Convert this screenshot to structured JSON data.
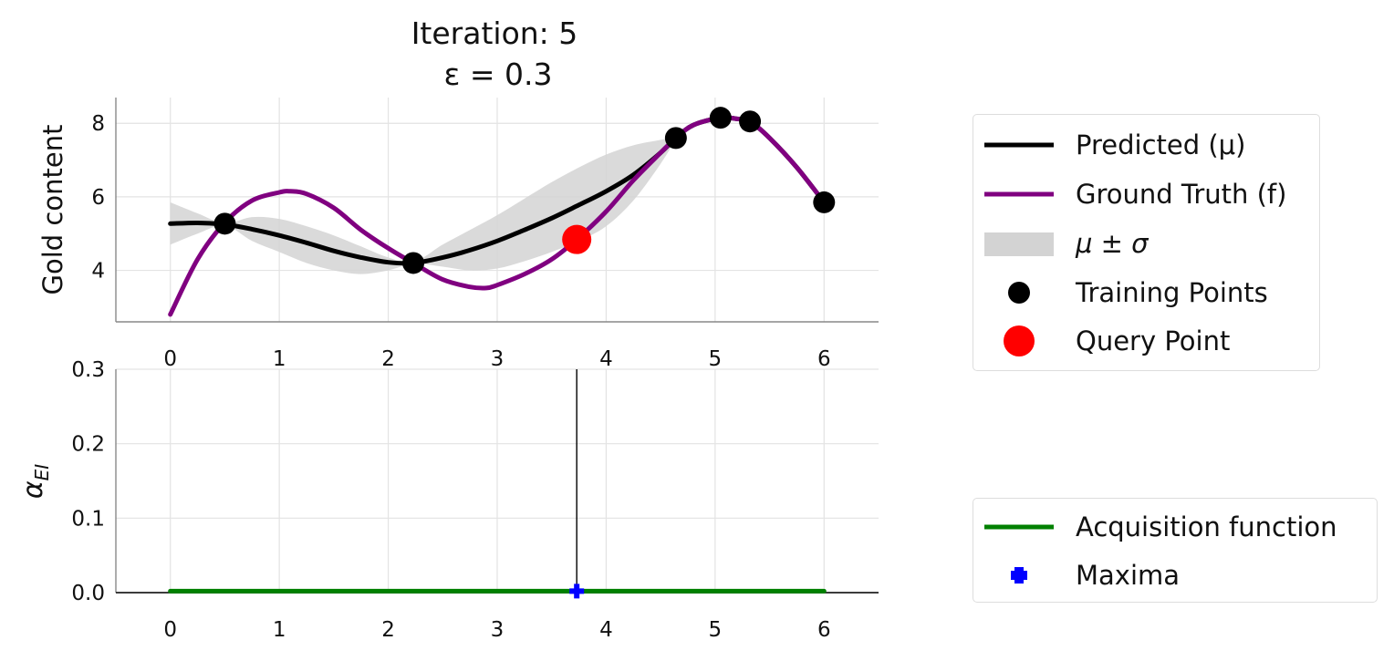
{
  "chart_data": [
    {
      "type": "line",
      "title": "Iteration: 5",
      "subtitle": "ε = 0.3",
      "ylabel": "Gold content",
      "xlabel": "",
      "xlim": [
        -0.5,
        6.5
      ],
      "ylim": [
        2.6,
        8.7
      ],
      "xticks": [
        0,
        1,
        2,
        3,
        4,
        5,
        6
      ],
      "yticks": [
        4,
        6,
        8
      ],
      "grid": true,
      "series": [
        {
          "name": "Predicted (μ)",
          "kind": "line",
          "color": "#000000",
          "x": [
            0,
            0.25,
            0.5,
            0.75,
            1.0,
            1.25,
            1.5,
            1.75,
            2.0,
            2.23,
            2.5,
            2.75,
            3.0,
            3.25,
            3.5,
            3.75,
            4.0,
            4.25,
            4.5,
            4.64,
            4.8,
            5.05,
            5.2,
            5.32,
            5.5,
            5.75,
            6.0
          ],
          "y": [
            5.27,
            5.29,
            5.25,
            5.12,
            4.95,
            4.75,
            4.53,
            4.35,
            4.22,
            4.2,
            4.35,
            4.55,
            4.8,
            5.1,
            5.42,
            5.78,
            6.15,
            6.6,
            7.2,
            7.6,
            7.95,
            8.15,
            8.12,
            8.05,
            7.6,
            6.8,
            5.85
          ]
        },
        {
          "name": "Ground Truth (f)",
          "kind": "line",
          "color": "#800080",
          "x": [
            0,
            0.25,
            0.5,
            0.75,
            1.0,
            1.1,
            1.25,
            1.5,
            1.75,
            2.0,
            2.23,
            2.5,
            2.75,
            2.9,
            3.0,
            3.25,
            3.5,
            3.73,
            4.0,
            4.25,
            4.5,
            4.64,
            4.8,
            5.05,
            5.2,
            5.32,
            5.5,
            5.75,
            6.0
          ],
          "y": [
            2.8,
            4.3,
            5.3,
            5.9,
            6.12,
            6.15,
            6.08,
            5.7,
            5.1,
            4.6,
            4.2,
            3.75,
            3.55,
            3.52,
            3.6,
            3.9,
            4.3,
            4.84,
            5.6,
            6.45,
            7.2,
            7.6,
            7.95,
            8.15,
            8.12,
            8.05,
            7.6,
            6.8,
            5.85
          ]
        },
        {
          "name": "μ ± σ",
          "kind": "band",
          "color": "#d3d3d3",
          "x": [
            0,
            0.25,
            0.5,
            0.75,
            1.0,
            1.25,
            1.5,
            1.75,
            2.0,
            2.23,
            2.5,
            2.75,
            3.0,
            3.25,
            3.5,
            3.75,
            4.0,
            4.25,
            4.5,
            4.64
          ],
          "upper": [
            5.85,
            5.55,
            5.28,
            5.45,
            5.4,
            5.2,
            4.95,
            4.65,
            4.35,
            4.22,
            4.7,
            5.1,
            5.5,
            5.95,
            6.4,
            6.8,
            7.15,
            7.4,
            7.55,
            7.62
          ],
          "lower": [
            4.7,
            5.0,
            5.22,
            4.8,
            4.5,
            4.2,
            4.0,
            3.9,
            4.0,
            4.18,
            4.1,
            4.0,
            4.05,
            4.25,
            4.5,
            4.8,
            5.2,
            5.9,
            6.9,
            7.58
          ]
        },
        {
          "name": "Training Points",
          "kind": "scatter",
          "color": "#000000",
          "x": [
            0.5,
            2.23,
            4.64,
            5.05,
            5.32,
            6.0
          ],
          "y": [
            5.27,
            4.2,
            7.6,
            8.15,
            8.05,
            5.85
          ]
        },
        {
          "name": "Query Point",
          "kind": "scatter",
          "color": "#ff0000",
          "x": [
            3.73
          ],
          "y": [
            4.84
          ]
        }
      ]
    },
    {
      "type": "line",
      "title": "",
      "ylabel": "α_EI",
      "ylabel_main": "α",
      "ylabel_sub": "EI",
      "xlabel": "",
      "xlim": [
        -0.5,
        6.5
      ],
      "ylim": [
        0.0,
        0.3
      ],
      "xticks": [
        0,
        1,
        2,
        3,
        4,
        5,
        6
      ],
      "yticks": [
        0.0,
        0.1,
        0.2,
        0.3
      ],
      "grid": true,
      "series": [
        {
          "name": "Acquisition function",
          "kind": "line",
          "color": "#008000",
          "x": [
            0,
            6
          ],
          "y": [
            0.002,
            0.002
          ]
        },
        {
          "name": "Maxima",
          "kind": "marker",
          "color": "#0000ff",
          "x": [
            3.73
          ],
          "y": [
            0.002
          ]
        }
      ],
      "vline_x": 3.73
    }
  ],
  "legends": {
    "top": [
      {
        "label": "Predicted (μ)",
        "kind": "line",
        "color": "#000000"
      },
      {
        "label": "Ground Truth (f)",
        "kind": "line",
        "color": "#800080"
      },
      {
        "label": "μ ± σ",
        "kind": "band",
        "color": "#d3d3d3"
      },
      {
        "label": "Training Points",
        "kind": "dot",
        "color": "#000000"
      },
      {
        "label": "Query Point",
        "kind": "bigdot",
        "color": "#ff0000"
      }
    ],
    "bottom": [
      {
        "label": "Acquisition function",
        "kind": "line",
        "color": "#008000"
      },
      {
        "label": "Maxima",
        "kind": "plus",
        "color": "#0000ff"
      }
    ]
  }
}
